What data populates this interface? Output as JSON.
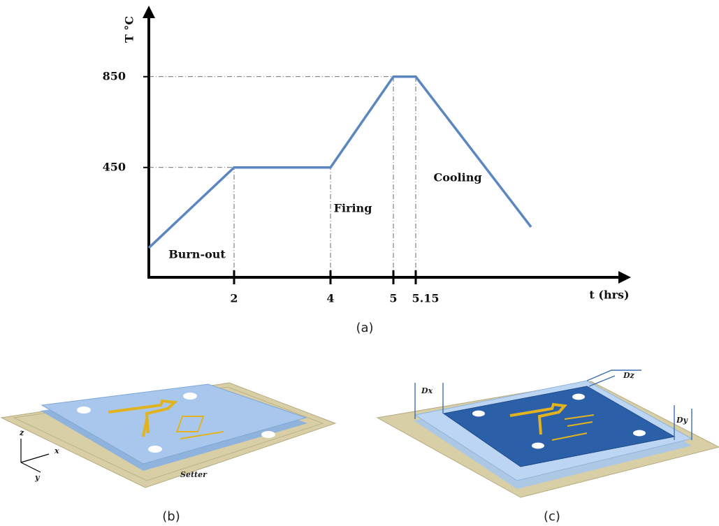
{
  "chart_data": {
    "type": "line",
    "y_label": "T °C",
    "x_label": "t (hrs)",
    "categories": [
      null,
      "2",
      "4",
      "5",
      "5.15",
      null
    ],
    "values": [
      96,
      450,
      450,
      850,
      850,
      188
    ],
    "color": "#5b86c0",
    "ylim": [
      0,
      1000
    ],
    "yticks": [
      450,
      850
    ],
    "annotations": [
      "Burn-out",
      "Firing",
      "Cooling"
    ],
    "caption": "(a)"
  },
  "panels": [
    {
      "caption": "(b)",
      "labels": [
        "Setter",
        "z",
        "x",
        "y"
      ]
    },
    {
      "caption": "(c)",
      "labels": [
        "Dx",
        "Dz",
        "Dy"
      ]
    }
  ]
}
